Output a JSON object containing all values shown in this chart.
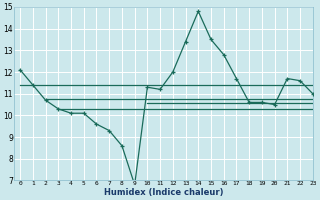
{
  "xlabel": "Humidex (Indice chaleur)",
  "bg_color": "#cce8ec",
  "grid_color": "#ffffff",
  "line_color": "#1a6b5a",
  "xlim": [
    -0.5,
    23
  ],
  "ylim": [
    7,
    15
  ],
  "xticks": [
    0,
    1,
    2,
    3,
    4,
    5,
    6,
    7,
    8,
    9,
    10,
    11,
    12,
    13,
    14,
    15,
    16,
    17,
    18,
    19,
    20,
    21,
    22,
    23
  ],
  "yticks": [
    7,
    8,
    9,
    10,
    11,
    12,
    13,
    14,
    15
  ],
  "main_line": {
    "x": [
      0,
      1,
      2,
      3,
      4,
      5,
      6,
      7,
      8,
      9,
      10,
      11,
      12,
      13,
      14,
      15,
      16,
      17,
      18,
      19,
      20,
      21,
      22,
      23
    ],
    "y": [
      12.1,
      11.4,
      10.7,
      10.3,
      10.1,
      10.1,
      9.6,
      9.3,
      8.6,
      6.8,
      11.3,
      11.2,
      12.0,
      13.4,
      14.8,
      13.5,
      12.8,
      11.7,
      10.6,
      10.6,
      10.5,
      11.7,
      11.6,
      11.0
    ]
  },
  "flat_lines": [
    {
      "x_start": 0,
      "x_end": 23,
      "y": 11.4
    },
    {
      "x_start": 2,
      "x_end": 23,
      "y": 10.75
    },
    {
      "x_start": 3,
      "x_end": 23,
      "y": 10.3
    },
    {
      "x_start": 10,
      "x_end": 23,
      "y": 10.55
    }
  ]
}
